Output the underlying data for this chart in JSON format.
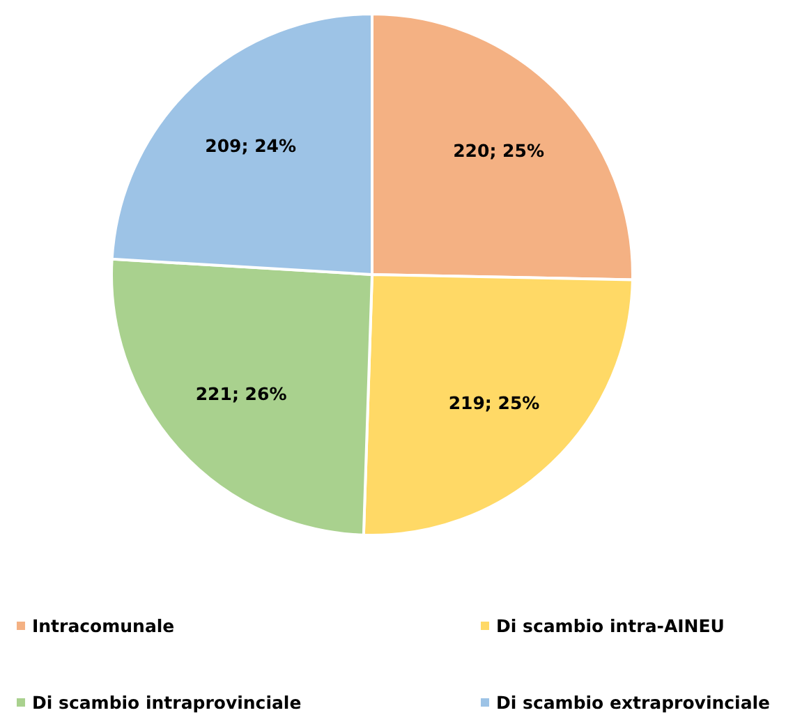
{
  "chart_data": {
    "type": "pie",
    "categories": [
      "Intracomunale",
      "Di scambio intra-AINEU",
      "Di scambio intraprovinciale",
      "Di scambio extraprovinciale"
    ],
    "values": [
      220,
      219,
      221,
      209
    ],
    "colors": [
      "#f4b183",
      "#ffd966",
      "#a9d18e",
      "#9dc3e6"
    ],
    "value_labels": [
      "220; 25%",
      "219; 25%",
      "221; 26%",
      "209; 24%"
    ],
    "legend": "bottom"
  }
}
